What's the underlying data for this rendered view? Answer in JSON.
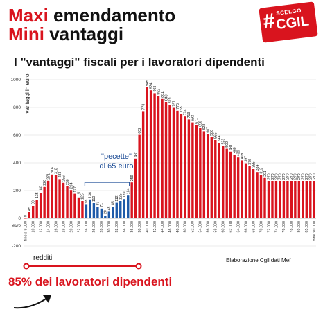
{
  "header": {
    "title_line1_red": "Maxi",
    "title_line1_rest": " emendamento",
    "title_line2_red": "Mini",
    "title_line2_rest": " vantaggi",
    "subtitle": "I \"vantaggi\" fiscali per i lavoratori dipendenti"
  },
  "logo": {
    "hash": "#",
    "small": "SCELGO",
    "big": "CGIL",
    "color": "#d9141e"
  },
  "annotation": {
    "line1": "\"pecette\"",
    "line2": "di 65 euro"
  },
  "range_label": "redditi",
  "source": "Elaborazione Cgil dati Mef",
  "footer": "85% dei lavoratori dipendenti",
  "colors": {
    "bar_red": "#d9141e",
    "bar_blue": "#1e5aa8",
    "accent": "#d9141e",
    "bracket": "#1e4d96"
  },
  "chart_data": {
    "type": "bar",
    "ylabel": "vantaggi in euro",
    "ylim": [
      -200,
      1000
    ],
    "yticks": [
      -200,
      0,
      200,
      400,
      600,
      800,
      1000
    ],
    "zero_label": "euro",
    "grid": true,
    "x_ticks": [
      {
        "i": 0,
        "label": "fino a 8.000"
      },
      {
        "i": 2,
        "label": "10.000"
      },
      {
        "i": 4,
        "label": "12.000"
      },
      {
        "i": 6,
        "label": "14.000"
      },
      {
        "i": 8,
        "label": "16.000"
      },
      {
        "i": 10,
        "label": "18.000"
      },
      {
        "i": 12,
        "label": "20.000"
      },
      {
        "i": 14,
        "label": "22.000"
      },
      {
        "i": 16,
        "label": "24.000"
      },
      {
        "i": 18,
        "label": "26.000"
      },
      {
        "i": 20,
        "label": "28.000"
      },
      {
        "i": 22,
        "label": "30.000"
      },
      {
        "i": 24,
        "label": "32.000"
      },
      {
        "i": 26,
        "label": "34.000"
      },
      {
        "i": 28,
        "label": "36.000"
      },
      {
        "i": 30,
        "label": "38.000"
      },
      {
        "i": 32,
        "label": "40.000"
      },
      {
        "i": 34,
        "label": "42.000"
      },
      {
        "i": 36,
        "label": "44.000"
      },
      {
        "i": 38,
        "label": "46.000"
      },
      {
        "i": 40,
        "label": "48.000"
      },
      {
        "i": 42,
        "label": "50.000"
      },
      {
        "i": 44,
        "label": "52.000"
      },
      {
        "i": 46,
        "label": "54.000"
      },
      {
        "i": 48,
        "label": "56.000"
      },
      {
        "i": 50,
        "label": "58.000"
      },
      {
        "i": 52,
        "label": "60.000"
      },
      {
        "i": 54,
        "label": "62.000"
      },
      {
        "i": 56,
        "label": "64.000"
      },
      {
        "i": 58,
        "label": "66.000"
      },
      {
        "i": 60,
        "label": "68.000"
      },
      {
        "i": 62,
        "label": "70.000"
      },
      {
        "i": 64,
        "label": "72.000"
      },
      {
        "i": 66,
        "label": "74.000"
      },
      {
        "i": 68,
        "label": "76.000"
      },
      {
        "i": 70,
        "label": "78.000"
      },
      {
        "i": 72,
        "label": "80.000"
      },
      {
        "i": 74,
        "label": "85.000"
      },
      {
        "i": 76,
        "label": "oltre 90.000"
      }
    ],
    "values": [
      0,
      45,
      90,
      135,
      180,
      226,
      271,
      316,
      310,
      283,
      256,
      230,
      204,
      177,
      151,
      125,
      98,
      136,
      110,
      83,
      71,
      20,
      48,
      85,
      112,
      125,
      139,
      164,
      259,
      431,
      602,
      773,
      945,
      924,
      903,
      882,
      861,
      840,
      819,
      797,
      776,
      755,
      734,
      713,
      692,
      671,
      650,
      628,
      607,
      586,
      565,
      544,
      523,
      502,
      481,
      460,
      439,
      418,
      397,
      376,
      355,
      334,
      312,
      291,
      270,
      270,
      270,
      270,
      270,
      270,
      270,
      270,
      270,
      270,
      270,
      270,
      270
    ],
    "value_labels": [
      "0",
      "45",
      "90",
      "135",
      "180",
      "226",
      "271",
      "316",
      "310",
      "283",
      "256",
      "230",
      "204",
      "177",
      "151",
      "125",
      "98",
      "136",
      "110",
      "83",
      "71",
      "20",
      "48",
      "85",
      "112",
      "125",
      "139",
      "164",
      "259",
      "431",
      "602",
      "773",
      "945",
      "924",
      "903",
      "882",
      "861",
      "840",
      "819",
      "797",
      "776",
      "755",
      "734",
      "713",
      "692",
      "671",
      "650",
      "628",
      "607",
      "586",
      "565",
      "544",
      "523",
      "502",
      "481",
      "460",
      "439",
      "418",
      "397",
      "376",
      "355",
      "334",
      "312",
      "291",
      "270",
      "270",
      "270",
      "270",
      "270",
      "270",
      "270",
      "270",
      "270",
      "270",
      "270",
      "270",
      "270"
    ],
    "label_every": 1,
    "blue_range": [
      16,
      27
    ]
  }
}
